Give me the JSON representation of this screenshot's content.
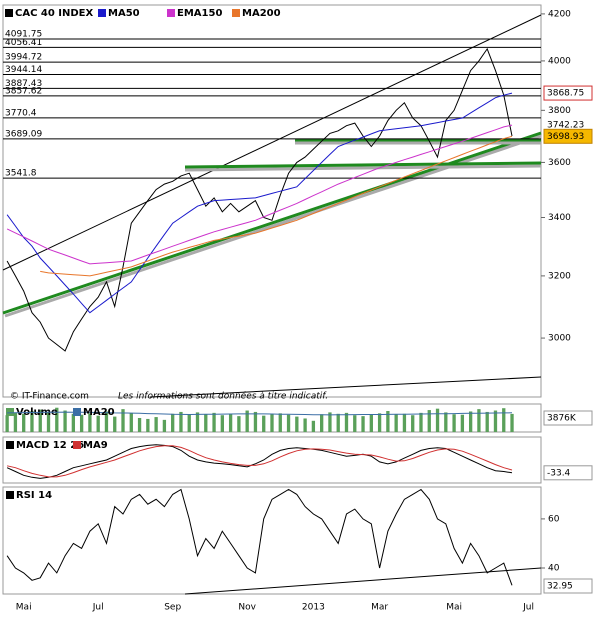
{
  "chart_data": [
    {
      "type": "line",
      "legend": "top-left",
      "log_scale": true,
      "grid": false,
      "categories": [
        null,
        null,
        "Mai",
        null,
        null,
        null,
        null,
        null,
        null,
        null,
        null,
        "Jul",
        null,
        null,
        null,
        null,
        null,
        null,
        null,
        null,
        "Sep",
        null,
        null,
        null,
        null,
        null,
        null,
        null,
        null,
        "Nov",
        null,
        null,
        null,
        null,
        null,
        null,
        null,
        "2013",
        null,
        null,
        null,
        null,
        null,
        null,
        null,
        "Mar",
        null,
        null,
        null,
        null,
        null,
        null,
        null,
        null,
        "Mai",
        null,
        null,
        null,
        null,
        null,
        null,
        null,
        null,
        "Jul",
        null
      ],
      "series": [
        {
          "name": "CAC 40 INDEX",
          "color": "#000000",
          "values": [
            3250,
            3200,
            3150,
            3080,
            3050,
            3000,
            2980,
            2960,
            3020,
            3060,
            3100,
            3130,
            3180,
            3100,
            3230,
            3380,
            3420,
            3460,
            3500,
            3520,
            3530,
            3550,
            3560,
            3500,
            3440,
            3470,
            3420,
            3450,
            3420,
            3440,
            3460,
            3400,
            3390,
            3480,
            3560,
            3600,
            3620,
            3650,
            3680,
            3710,
            3720,
            3740,
            3750,
            3700,
            3660,
            3700,
            3760,
            3800,
            3830,
            3770,
            3740,
            3680,
            3620,
            3760,
            3800,
            3880,
            3960,
            4000,
            4050,
            3960,
            3860,
            3700,
            null,
            null,
            null
          ]
        },
        {
          "name": "MA50",
          "color": "#1a1acc",
          "values": [
            3410,
            3370,
            3330,
            3300,
            3260,
            3230,
            3200,
            3170,
            3140,
            3110,
            3080,
            3100,
            3120,
            3140,
            3160,
            3180,
            3220,
            3260,
            3300,
            3340,
            3380,
            3400,
            3420,
            3440,
            3450,
            3460,
            3462,
            3464,
            3466,
            3468,
            3470,
            3478,
            3486,
            3494,
            3502,
            3510,
            3540,
            3570,
            3600,
            3630,
            3660,
            3672,
            3684,
            3696,
            3708,
            3720,
            3724,
            3728,
            3732,
            3736,
            3740,
            3746,
            3752,
            3758,
            3764,
            3770,
            3790,
            3810,
            3830,
            3850,
            3860,
            3868.75,
            null,
            null,
            null
          ]
        },
        {
          "name": "EMA150",
          "color": "#cc33cc",
          "values": [
            3360,
            3346,
            3332,
            3318,
            3304,
            3290,
            3280,
            3270,
            3260,
            3250,
            3240,
            3242,
            3244,
            3246,
            3248,
            3250,
            3260,
            3270,
            3280,
            3290,
            3300,
            3310,
            3320,
            3330,
            3340,
            3350,
            3358,
            3366,
            3374,
            3382,
            3390,
            3402,
            3414,
            3426,
            3438,
            3450,
            3464,
            3478,
            3492,
            3506,
            3520,
            3532,
            3544,
            3556,
            3568,
            3580,
            3590,
            3600,
            3610,
            3620,
            3630,
            3640,
            3650,
            3660,
            3670,
            3680,
            3691,
            3702,
            3713,
            3724,
            3735,
            3742.23,
            null,
            null,
            null
          ]
        },
        {
          "name": "MA200",
          "color": "#e8762b",
          "values": [
            null,
            null,
            null,
            null,
            3215,
            3210,
            3208,
            3206,
            3204,
            3202,
            3200,
            3206,
            3212,
            3218,
            3224,
            3230,
            3240,
            3250,
            3260,
            3270,
            3280,
            3288,
            3296,
            3304,
            3312,
            3320,
            3325,
            3330,
            3335,
            3340,
            3345,
            3354,
            3363,
            3372,
            3381,
            3390,
            3402,
            3414,
            3426,
            3438,
            3450,
            3462,
            3474,
            3486,
            3498,
            3510,
            3522,
            3534,
            3546,
            3558,
            3570,
            3582,
            3594,
            3606,
            3618,
            3630,
            3642,
            3654,
            3666,
            3678,
            3690,
            3698.93,
            null,
            null,
            null
          ]
        }
      ],
      "ylim": [
        2822,
        4239
      ],
      "yticks": [
        3000,
        3200,
        3400,
        3600,
        3800,
        4000,
        4200
      ],
      "levels": [
        4091.75,
        4056.41,
        3994.72,
        3944.14,
        3887.43,
        3857.62,
        3770.4,
        3689.09,
        3541.8
      ],
      "source": "© IT-Finance.com",
      "disclaimer": "Les informations sont données à titre indicatif."
    },
    {
      "type": "bar",
      "legend": "top-left",
      "series": [
        {
          "name": "Volume",
          "color": "#5aa05a",
          "values": [
            3600,
            4100,
            3900,
            4500,
            4800,
            4200,
            5200,
            4600,
            3900,
            3700,
            4000,
            3500,
            4400,
            3300,
            4900,
            4100,
            3000,
            2800,
            3200,
            2600,
            3900,
            4300,
            3700,
            4200,
            3800,
            4100,
            3600,
            3900,
            3400,
            4600,
            4300,
            3500,
            3800,
            4000,
            3700,
            3300,
            2900,
            2400,
            3800,
            4200,
            3900,
            4100,
            3600,
            3400,
            3700,
            4000,
            4500,
            3800,
            3900,
            3600,
            4100,
            4700,
            5000,
            4200,
            3800,
            3700,
            4400,
            4900,
            4300,
            4600,
            5100,
            3876,
            null,
            null,
            null
          ],
          "value_labels": [
            null,
            null,
            null,
            null,
            null,
            null,
            null,
            null,
            null,
            null,
            null,
            null,
            null,
            null,
            null,
            null,
            null,
            null,
            null,
            null,
            null,
            null,
            null,
            null,
            null,
            null,
            null,
            null,
            null,
            null,
            null,
            null,
            null,
            null,
            null,
            null,
            null,
            null,
            null,
            null,
            null,
            null,
            null,
            null,
            null,
            null,
            null,
            null,
            null,
            null,
            null,
            null,
            null,
            null,
            null,
            null,
            null,
            null,
            null,
            null,
            null,
            "3876K",
            null,
            null,
            null
          ]
        },
        {
          "name": "MA20",
          "color": "#3b6ea5",
          "type": "line",
          "values": [
            4100,
            4120,
            4150,
            4180,
            4200,
            4220,
            4250,
            4260,
            4250,
            4230,
            4200,
            4180,
            4150,
            4100,
            4080,
            4050,
            4000,
            3950,
            3900,
            3850,
            3800,
            3780,
            3760,
            3780,
            3800,
            3820,
            3840,
            3860,
            3870,
            3880,
            3880,
            3870,
            3850,
            3820,
            3800,
            3780,
            3750,
            3700,
            3680,
            3670,
            3680,
            3700,
            3720,
            3740,
            3750,
            3760,
            3780,
            3800,
            3820,
            3840,
            3860,
            3880,
            3900,
            3920,
            3950,
            3980,
            4000,
            4030,
            4060,
            4080,
            4100,
            4110,
            null,
            null,
            null
          ]
        }
      ],
      "ylim": [
        0,
        6000
      ]
    },
    {
      "type": "line",
      "legend": "top-left",
      "series": [
        {
          "name": "MACD 12 26",
          "color": "#000000",
          "values": [
            -20,
            -30,
            -40,
            -45,
            -48,
            -45,
            -40,
            -30,
            -20,
            -15,
            -10,
            -5,
            0,
            10,
            20,
            30,
            35,
            38,
            40,
            38,
            35,
            25,
            10,
            0,
            -5,
            -8,
            -10,
            -12,
            -15,
            -18,
            -10,
            0,
            15,
            25,
            30,
            32,
            30,
            28,
            25,
            20,
            15,
            10,
            12,
            15,
            10,
            -5,
            -10,
            -5,
            5,
            15,
            25,
            30,
            32,
            30,
            20,
            10,
            0,
            -10,
            -20,
            -28,
            -30,
            -33.4,
            null,
            null,
            null
          ]
        },
        {
          "name": "MA9",
          "color": "#d03030",
          "values": [
            -15,
            -20,
            -28,
            -35,
            -40,
            -44,
            -44,
            -40,
            -33,
            -25,
            -18,
            -12,
            -6,
            0,
            8,
            16,
            24,
            30,
            35,
            37,
            37,
            33,
            25,
            15,
            6,
            0,
            -5,
            -9,
            -12,
            -14,
            -14,
            -10,
            -2,
            8,
            17,
            24,
            28,
            29,
            28,
            26,
            22,
            18,
            15,
            14,
            13,
            8,
            2,
            -3,
            -2,
            4,
            12,
            20,
            26,
            29,
            28,
            23,
            15,
            6,
            -3,
            -12,
            -20,
            -26,
            null,
            null,
            null
          ]
        }
      ],
      "ylim": [
        -60,
        60
      ]
    },
    {
      "type": "line",
      "legend": "top-left",
      "series": [
        {
          "name": "RSI 14",
          "color": "#000000",
          "values": [
            45,
            40,
            38,
            35,
            36,
            42,
            38,
            45,
            50,
            48,
            55,
            58,
            50,
            65,
            62,
            68,
            70,
            66,
            68,
            65,
            70,
            72,
            60,
            45,
            52,
            48,
            55,
            50,
            45,
            40,
            38,
            60,
            68,
            70,
            72,
            70,
            65,
            62,
            60,
            55,
            50,
            62,
            64,
            60,
            58,
            40,
            55,
            62,
            68,
            70,
            72,
            68,
            60,
            58,
            48,
            42,
            50,
            45,
            38,
            40,
            42,
            32.95,
            null,
            null,
            null
          ]
        }
      ],
      "ylim": [
        29.4,
        73
      ],
      "yticks": [
        60,
        40
      ]
    }
  ]
}
